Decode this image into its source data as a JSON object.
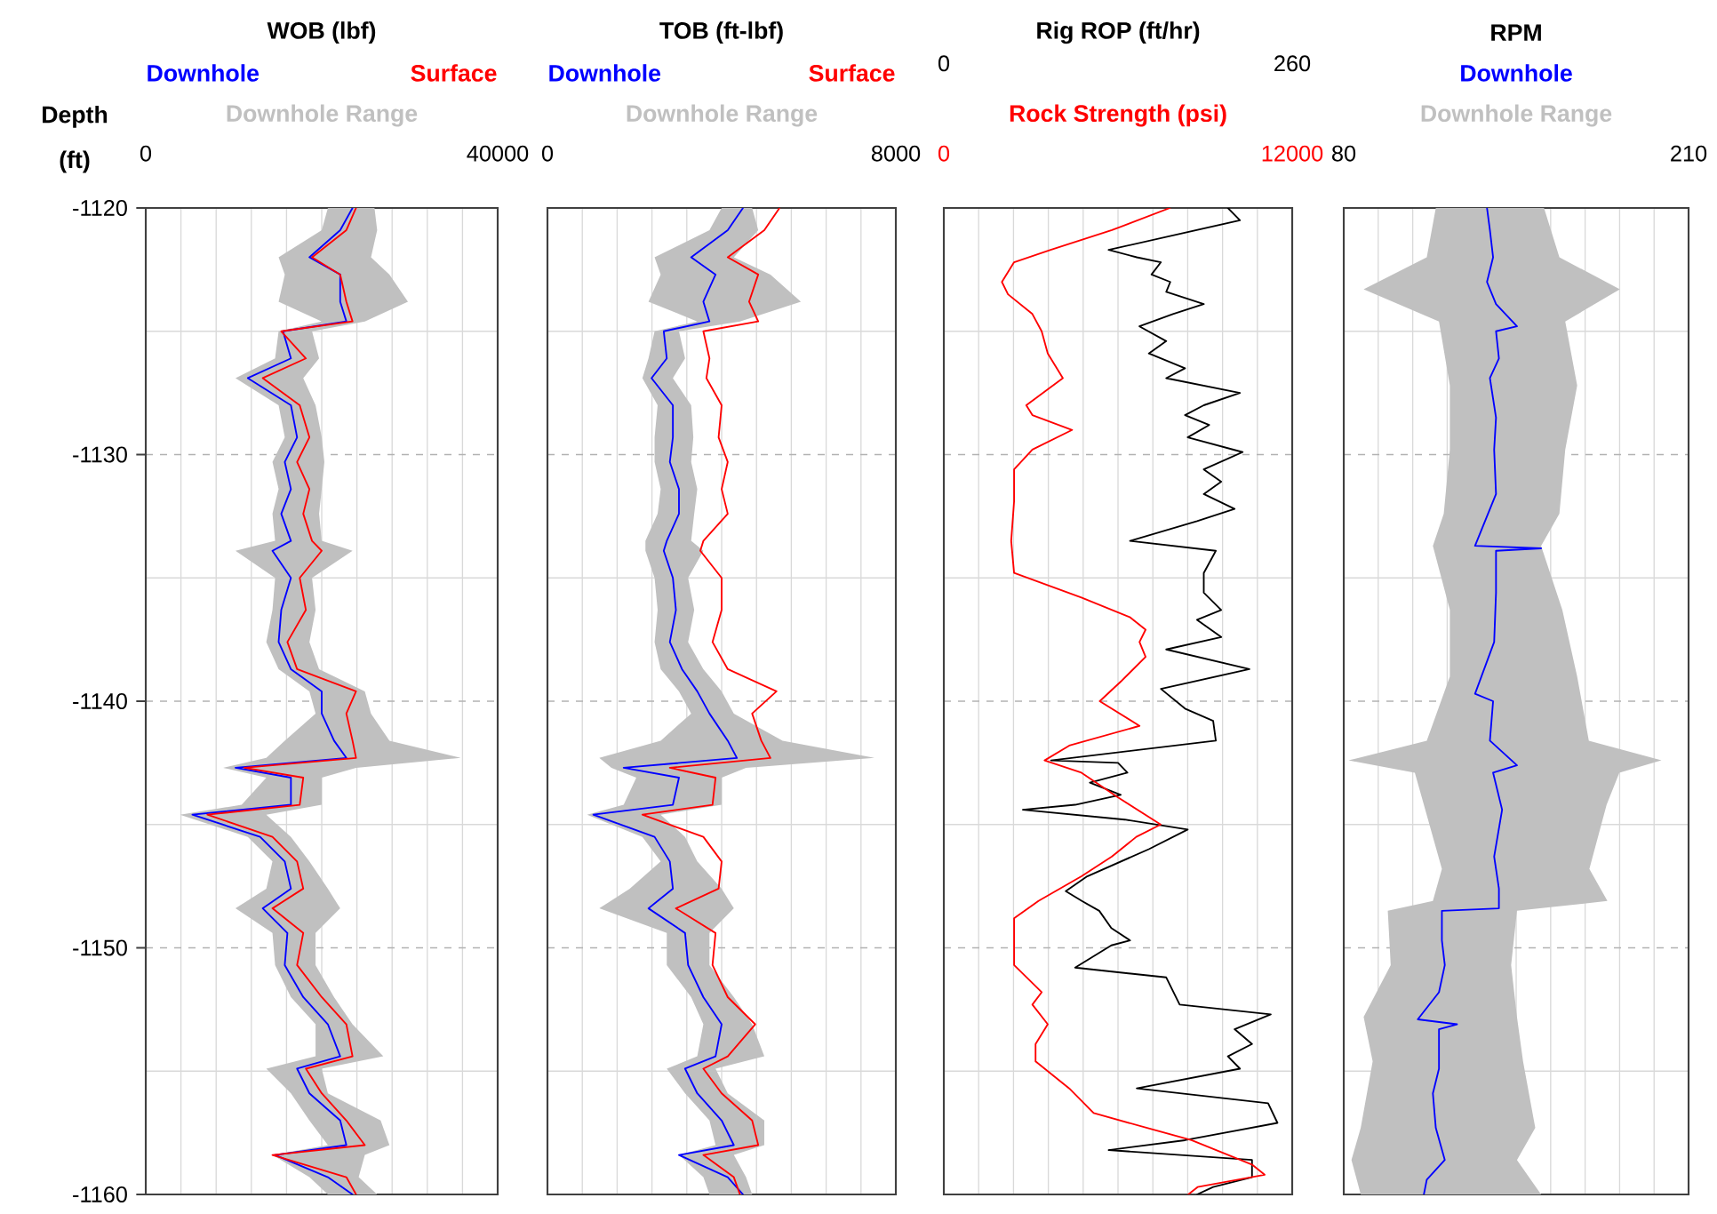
{
  "chart_data": [
    {
      "type": "line",
      "xlabel": "WOB (lbf)",
      "ylabel": "Depth (ft)",
      "legend": "top",
      "grid": true,
      "xlim": [
        0,
        40000
      ],
      "xticks": [
        0,
        {
          "value": 4000,
          "label": null
        },
        {
          "value": 8000,
          "label": null
        },
        {
          "value": 12000,
          "label": null
        },
        {
          "value": 16000,
          "label": null
        },
        {
          "value": 20000,
          "label": null
        },
        {
          "value": 24000,
          "label": null
        },
        {
          "value": 28000,
          "label": null
        },
        {
          "value": 32000,
          "label": null
        },
        {
          "value": 36000,
          "label": null
        },
        40000
      ],
      "ylim": [
        -1160,
        -1120
      ],
      "yticks": [
        -1160,
        {
          "value": -1155,
          "label": null
        },
        -1150,
        {
          "value": -1145,
          "label": null
        },
        -1140,
        {
          "value": -1135,
          "label": null
        },
        -1130,
        {
          "value": -1125,
          "label": null
        },
        -1120
      ],
      "series": [
        {
          "name": "Downhole Range",
          "type": "area",
          "color": "#c0c0c0",
          "values": [
            -1120.0,
            -1120.9,
            -1122.0,
            -1122.7,
            -1123.8,
            -1124.6,
            -1125.0,
            -1126.1,
            -1126.9,
            -1128.0,
            -1129.3,
            -1130.3,
            -1131.4,
            -1132.4,
            -1133.5,
            -1133.9,
            -1135.0,
            -1136.3,
            -1137.6,
            -1138.7,
            -1139.6,
            -1140.5,
            -1141.6,
            -1142.3,
            -1142.7,
            -1143.1,
            -1144.2,
            -1144.6,
            -1145.5,
            -1146.5,
            -1147.6,
            -1148.4,
            -1149.4,
            -1150.7,
            -1152.0,
            -1153.1,
            -1154.4,
            -1154.9,
            -1155.9,
            -1157.0,
            -1158.0,
            -1158.4,
            -1159.3,
            -1160.0,
            -1160.0,
            -1159.3,
            -1158.4,
            -1158.0,
            -1157.0,
            -1155.9,
            -1154.9,
            -1154.4,
            -1153.1,
            -1152.0,
            -1150.7,
            -1149.4,
            -1148.4,
            -1147.6,
            -1146.5,
            -1145.5,
            -1144.6,
            -1144.2,
            -1143.1,
            -1142.7,
            -1142.3,
            -1141.6,
            -1140.5,
            -1139.6,
            -1138.7,
            -1137.6,
            -1136.3,
            -1135.0,
            -1133.9,
            -1133.5,
            -1132.4,
            -1131.4,
            -1130.3,
            -1129.3,
            -1128.0,
            -1126.9,
            -1126.1,
            -1125.0,
            -1124.6,
            -1123.8,
            -1122.7,
            -1122.0,
            -1120.9,
            -1120.0
          ],
          "x": [
            20700,
            20000,
            15100,
            15800,
            15100,
            20000,
            15100,
            14700,
            10200,
            15100,
            15800,
            14400,
            15100,
            14400,
            14700,
            10200,
            14700,
            14400,
            13700,
            15100,
            18600,
            19300,
            15800,
            13700,
            8800,
            13700,
            10900,
            3900,
            11600,
            14400,
            13700,
            10200,
            14400,
            14700,
            16500,
            19300,
            19300,
            13700,
            16500,
            18600,
            20700,
            14400,
            18600,
            20700,
            26300,
            24200,
            24900,
            27700,
            26700,
            20700,
            20000,
            27000,
            23500,
            21400,
            19300,
            19300,
            22100,
            20700,
            18600,
            16500,
            13700,
            20000,
            20000,
            23900,
            35800,
            27700,
            25600,
            24900,
            19700,
            18600,
            19300,
            18900,
            23500,
            20000,
            19700,
            20000,
            20300,
            20000,
            19300,
            17900,
            19700,
            18900,
            24900,
            29800,
            27700,
            25600,
            26300,
            26000
          ]
        },
        {
          "name": "Downhole",
          "type": "line",
          "color": "#0000ff",
          "values": [
            -1120.0,
            -1120.9,
            -1122.0,
            -1122.7,
            -1123.8,
            -1124.6,
            -1125.0,
            -1126.1,
            -1126.9,
            -1128.0,
            -1129.3,
            -1130.3,
            -1131.4,
            -1132.4,
            -1133.5,
            -1133.9,
            -1135.0,
            -1136.3,
            -1137.6,
            -1138.7,
            -1139.6,
            -1140.5,
            -1141.6,
            -1142.3,
            -1142.7,
            -1143.1,
            -1144.2,
            -1144.6,
            -1145.5,
            -1146.5,
            -1147.6,
            -1148.4,
            -1149.4,
            -1150.7,
            -1152.0,
            -1153.1,
            -1154.4,
            -1154.9,
            -1155.9,
            -1157.0,
            -1158.0,
            -1158.4,
            -1159.3,
            -1160.0
          ],
          "x": [
            23500,
            22100,
            18600,
            22100,
            22100,
            22800,
            15600,
            16500,
            11600,
            16500,
            17200,
            15800,
            16500,
            15400,
            16500,
            14400,
            16500,
            15400,
            15100,
            16500,
            20000,
            20000,
            21400,
            22800,
            10200,
            16500,
            16500,
            5300,
            13000,
            15800,
            16500,
            13300,
            16100,
            15800,
            17900,
            20700,
            22100,
            17200,
            18600,
            22100,
            22800,
            14700,
            20700,
            23500
          ]
        },
        {
          "name": "Surface",
          "type": "line",
          "color": "#ff0000",
          "values": [
            -1120.0,
            -1120.9,
            -1122.0,
            -1122.7,
            -1123.8,
            -1124.6,
            -1125.0,
            -1126.1,
            -1126.9,
            -1128.0,
            -1129.3,
            -1130.3,
            -1131.4,
            -1132.4,
            -1133.5,
            -1133.9,
            -1135.0,
            -1136.3,
            -1137.6,
            -1138.7,
            -1139.6,
            -1140.5,
            -1141.6,
            -1142.3,
            -1142.7,
            -1143.1,
            -1144.2,
            -1144.6,
            -1145.5,
            -1146.5,
            -1147.6,
            -1148.4,
            -1149.4,
            -1150.7,
            -1152.0,
            -1153.1,
            -1154.4,
            -1154.9,
            -1155.9,
            -1157.0,
            -1158.0,
            -1158.4,
            -1159.3,
            -1160.0
          ],
          "x": [
            23900,
            22800,
            18900,
            22100,
            22800,
            23500,
            15400,
            18200,
            13300,
            17500,
            18600,
            17200,
            18600,
            17900,
            18900,
            20000,
            17500,
            18200,
            16100,
            17200,
            23900,
            22800,
            23500,
            23900,
            11200,
            17900,
            17500,
            7000,
            14400,
            17200,
            17900,
            14400,
            17900,
            17200,
            20000,
            22800,
            23500,
            18200,
            20000,
            22800,
            24900,
            14400,
            22800,
            23900
          ]
        }
      ]
    },
    {
      "type": "line",
      "xlabel": "TOB (ft-lbf)",
      "legend": "top",
      "grid": true,
      "tick_labels": "x",
      "xlim": [
        0,
        8000
      ],
      "xticks": [
        0,
        {
          "value": 800,
          "label": null
        },
        {
          "value": 1600,
          "label": null
        },
        {
          "value": 2400,
          "label": null
        },
        {
          "value": 3200,
          "label": null
        },
        {
          "value": 4000,
          "label": null
        },
        {
          "value": 4800,
          "label": null
        },
        {
          "value": 5600,
          "label": null
        },
        {
          "value": 6400,
          "label": null
        },
        {
          "value": 7200,
          "label": null
        },
        8000
      ],
      "ylim": [
        -1160,
        -1120
      ],
      "yticks": [
        -1160,
        {
          "value": -1155,
          "label": null
        },
        -1150,
        {
          "value": -1145,
          "label": null
        },
        -1140,
        {
          "value": -1135,
          "label": null
        },
        -1130,
        {
          "value": -1125,
          "label": null
        },
        -1120
      ],
      "series": [
        {
          "name": "Downhole Range",
          "type": "area",
          "color": "#c0c0c0",
          "values": [
            -1120.0,
            -1120.9,
            -1122.0,
            -1122.7,
            -1123.8,
            -1124.6,
            -1125.0,
            -1126.1,
            -1126.9,
            -1128.0,
            -1129.3,
            -1130.3,
            -1131.4,
            -1132.4,
            -1133.5,
            -1133.9,
            -1135.0,
            -1136.3,
            -1137.6,
            -1138.7,
            -1139.6,
            -1140.5,
            -1141.6,
            -1142.3,
            -1142.7,
            -1143.1,
            -1144.2,
            -1144.6,
            -1145.5,
            -1146.5,
            -1147.6,
            -1148.4,
            -1149.4,
            -1150.7,
            -1152.0,
            -1153.1,
            -1154.4,
            -1154.9,
            -1155.9,
            -1157.0,
            -1158.0,
            -1158.4,
            -1159.3,
            -1160.0,
            -1160.0,
            -1159.3,
            -1158.4,
            -1158.0,
            -1157.0,
            -1155.9,
            -1154.9,
            -1154.4,
            -1153.1,
            -1152.0,
            -1150.7,
            -1149.4,
            -1148.4,
            -1147.6,
            -1146.5,
            -1145.5,
            -1144.6,
            -1144.2,
            -1143.1,
            -1142.7,
            -1142.3,
            -1141.6,
            -1140.5,
            -1139.6,
            -1138.7,
            -1137.6,
            -1136.3,
            -1135.0,
            -1133.9,
            -1133.5,
            -1132.4,
            -1131.4,
            -1130.3,
            -1129.3,
            -1128.0,
            -1126.9,
            -1126.1,
            -1125.0,
            -1124.6,
            -1123.8,
            -1122.7,
            -1122.0,
            -1120.9,
            -1120.0
          ],
          "x": [
            4000,
            3720,
            2460,
            2600,
            2320,
            3440,
            2460,
            2320,
            2180,
            2530,
            2460,
            2460,
            2600,
            2530,
            2250,
            2250,
            2460,
            2530,
            2460,
            2600,
            3020,
            3300,
            2600,
            1190,
            1470,
            2040,
            1750,
            910,
            2180,
            2600,
            1890,
            1190,
            2740,
            2740,
            3300,
            3580,
            3440,
            2740,
            3160,
            3720,
            3860,
            3020,
            3580,
            3720,
            4700,
            4560,
            4280,
            4980,
            4980,
            4140,
            3860,
            4980,
            4700,
            4280,
            3720,
            3720,
            4280,
            4000,
            3440,
            3160,
            2600,
            4000,
            4000,
            4560,
            7510,
            5400,
            4280,
            4000,
            3580,
            3230,
            3370,
            3230,
            3580,
            3300,
            3370,
            3440,
            3300,
            3350,
            3300,
            2880,
            3160,
            3020,
            4420,
            5820,
            5120,
            4280,
            4840,
            4700
          ]
        },
        {
          "name": "Downhole",
          "type": "line",
          "color": "#0000ff",
          "values": [
            -1120.0,
            -1120.9,
            -1122.0,
            -1122.7,
            -1123.8,
            -1124.6,
            -1125.0,
            -1126.1,
            -1126.9,
            -1128.0,
            -1129.3,
            -1130.3,
            -1131.4,
            -1132.4,
            -1133.5,
            -1133.9,
            -1135.0,
            -1136.3,
            -1137.6,
            -1138.7,
            -1139.6,
            -1140.5,
            -1141.6,
            -1142.3,
            -1142.7,
            -1143.1,
            -1144.2,
            -1144.6,
            -1145.5,
            -1146.5,
            -1147.6,
            -1148.4,
            -1149.4,
            -1150.7,
            -1152.0,
            -1153.1,
            -1154.4,
            -1154.9,
            -1155.9,
            -1157.0,
            -1158.0,
            -1158.4,
            -1159.3,
            -1160.0
          ],
          "x": [
            4490,
            4140,
            3300,
            3860,
            3580,
            3720,
            2670,
            2740,
            2390,
            2880,
            2880,
            2810,
            3020,
            3020,
            2740,
            2670,
            2880,
            2950,
            2810,
            3090,
            3440,
            3720,
            4140,
            4350,
            1750,
            3020,
            2880,
            1050,
            2460,
            2810,
            2880,
            2320,
            3160,
            3230,
            3580,
            4000,
            3860,
            3160,
            3440,
            4000,
            4280,
            3020,
            4140,
            4490
          ]
        },
        {
          "name": "Surface",
          "type": "line",
          "color": "#ff0000",
          "values": [
            -1120.0,
            -1120.9,
            -1122.0,
            -1122.7,
            -1123.8,
            -1124.6,
            -1125.0,
            -1126.1,
            -1126.9,
            -1128.0,
            -1129.3,
            -1130.3,
            -1131.4,
            -1132.4,
            -1133.5,
            -1133.9,
            -1135.0,
            -1136.3,
            -1137.6,
            -1138.7,
            -1139.6,
            -1140.5,
            -1141.6,
            -1142.3,
            -1142.7,
            -1143.1,
            -1144.2,
            -1144.6,
            -1145.5,
            -1146.5,
            -1147.6,
            -1148.4,
            -1149.4,
            -1150.7,
            -1152.0,
            -1153.1,
            -1154.4,
            -1154.9,
            -1155.9,
            -1157.0,
            -1158.0,
            -1158.4,
            -1159.3,
            -1160.0
          ],
          "x": [
            5330,
            4980,
            4140,
            4840,
            4630,
            4840,
            3580,
            3720,
            3650,
            4000,
            3930,
            4140,
            4000,
            4140,
            3580,
            3510,
            4000,
            4000,
            3790,
            4140,
            5260,
            4700,
            4910,
            5120,
            2810,
            3860,
            3790,
            2180,
            3580,
            4000,
            3930,
            2950,
            3860,
            3790,
            4140,
            4770,
            4140,
            3580,
            4000,
            4700,
            4840,
            3580,
            4280,
            4420
          ]
        }
      ]
    },
    {
      "type": "line",
      "xlabel": "Rig ROP (ft/hr)",
      "x2label": "Rock Strength (psi)",
      "grid": true,
      "tick_labels": "x",
      "xlim": [
        0,
        260
      ],
      "xticks": [
        0,
        {
          "value": 26,
          "label": null
        },
        {
          "value": 52,
          "label": null
        },
        {
          "value": 78,
          "label": null
        },
        {
          "value": 104,
          "label": null
        },
        {
          "value": 130,
          "label": null
        },
        {
          "value": 156,
          "label": null
        },
        {
          "value": 182,
          "label": null
        },
        {
          "value": 208,
          "label": null
        },
        {
          "value": 234,
          "label": null
        },
        260
      ],
      "x2lim": [
        0,
        12000
      ],
      "x2ticks": [
        0,
        12000
      ],
      "ylim": [
        -1160,
        -1120
      ],
      "yticks": [
        -1160,
        {
          "value": -1155,
          "label": null
        },
        -1150,
        {
          "value": -1145,
          "label": null
        },
        -1140,
        {
          "value": -1135,
          "label": null
        },
        -1130,
        {
          "value": -1125,
          "label": null
        },
        -1120
      ],
      "series": [
        {
          "type": "line",
          "color": "#ff0000",
          "axis": "x2",
          "values": [
            -1120.0,
            -1120.9,
            -1121.7,
            -1122.2,
            -1123.0,
            -1123.5,
            -1124.3,
            -1125.0,
            -1125.9,
            -1126.9,
            -1128.0,
            -1128.4,
            -1129.0,
            -1129.8,
            -1130.6,
            -1131.9,
            -1133.5,
            -1134.8,
            -1135.8,
            -1136.6,
            -1137.1,
            -1137.6,
            -1138.2,
            -1139.2,
            -1140.0,
            -1141.0,
            -1141.8,
            -1142.4,
            -1142.9,
            -1143.9,
            -1145.0,
            -1145.5,
            -1146.3,
            -1147.1,
            -1148.1,
            -1148.8,
            -1150.7,
            -1151.8,
            -1152.3,
            -1153.1,
            -1153.9,
            -1154.6,
            -1155.7,
            -1156.7,
            -1157.8,
            -1158.8,
            -1159.2,
            -1159.7,
            -1160.0
          ],
          "x": [
            7790,
            5790,
            3680,
            2420,
            2000,
            2210,
            3050,
            3370,
            3580,
            4100,
            2840,
            3050,
            4420,
            3050,
            2420,
            2420,
            2320,
            2420,
            4740,
            6420,
            6950,
            6740,
            6950,
            6100,
            5370,
            6740,
            4320,
            3470,
            4740,
            6000,
            7470,
            6630,
            5790,
            4740,
            3260,
            2420,
            2420,
            3370,
            3050,
            3580,
            3160,
            3160,
            4320,
            5160,
            8530,
            10630,
            11050,
            8740,
            8420
          ]
        },
        {
          "type": "line",
          "color": "#000000",
          "values": [
            -1120.0,
            -1120.5,
            -1121.7,
            -1122.0,
            -1122.2,
            -1122.7,
            -1123.0,
            -1123.4,
            -1123.9,
            -1124.3,
            -1124.8,
            -1125.4,
            -1125.9,
            -1126.5,
            -1126.9,
            -1127.5,
            -1128.0,
            -1128.4,
            -1128.8,
            -1129.3,
            -1129.9,
            -1130.6,
            -1131.1,
            -1131.6,
            -1132.2,
            -1132.7,
            -1133.5,
            -1133.9,
            -1134.8,
            -1135.6,
            -1136.3,
            -1136.7,
            -1137.4,
            -1137.9,
            -1138.7,
            -1139.5,
            -1140.3,
            -1140.8,
            -1141.6,
            -1142.4,
            -1142.5,
            -1142.9,
            -1143.3,
            -1143.8,
            -1144.2,
            -1144.4,
            -1144.8,
            -1145.2,
            -1146.0,
            -1147.1,
            -1147.7,
            -1148.1,
            -1148.5,
            -1149.2,
            -1149.7,
            -1149.9,
            -1150.8,
            -1151.2,
            -1152.3,
            -1152.7,
            -1153.3,
            -1153.9,
            -1154.4,
            -1154.9,
            -1155.7,
            -1156.3,
            -1157.1,
            -1157.8,
            -1158.2,
            -1158.6,
            -1159.3,
            -1159.7,
            -1160.0
          ],
          "x": [
            212,
            221,
            123,
            144,
            162,
            155,
            169,
            166,
            194,
            171,
            146,
            166,
            153,
            180,
            166,
            221,
            194,
            180,
            198,
            182,
            223,
            194,
            207,
            194,
            217,
            189,
            139,
            203,
            194,
            194,
            207,
            189,
            207,
            166,
            228,
            162,
            180,
            201,
            203,
            80,
            130,
            137,
            109,
            132,
            98,
            59,
            135,
            182,
            153,
            107,
            91,
            103,
            116,
            125,
            139,
            125,
            98,
            166,
            176,
            244,
            217,
            230,
            212,
            221,
            144,
            242,
            249,
            180,
            123,
            230,
            230,
            201,
            189
          ]
        }
      ]
    },
    {
      "type": "line",
      "xlabel": "RPM",
      "legend": "top",
      "grid": true,
      "tick_labels": "x",
      "xlim": [
        80,
        210
      ],
      "xticks": [
        80,
        {
          "value": 93,
          "label": null
        },
        {
          "value": 106,
          "label": null
        },
        {
          "value": 119,
          "label": null
        },
        {
          "value": 132,
          "label": null
        },
        {
          "value": 145,
          "label": null
        },
        {
          "value": 158,
          "label": null
        },
        {
          "value": 171,
          "label": null
        },
        {
          "value": 184,
          "label": null
        },
        {
          "value": 197,
          "label": null
        },
        210
      ],
      "ylim": [
        -1160,
        -1120
      ],
      "yticks": [
        -1160,
        {
          "value": -1155,
          "label": null
        },
        -1150,
        {
          "value": -1145,
          "label": null
        },
        -1140,
        {
          "value": -1135,
          "label": null
        },
        -1130,
        {
          "value": -1125,
          "label": null
        },
        -1120
      ],
      "series": [
        {
          "name": "Downhole Range",
          "type": "area",
          "color": "#c0c0c0",
          "values": [
            -1120.0,
            -1122.0,
            -1123.3,
            -1124.6,
            -1127.2,
            -1129.8,
            -1132.4,
            -1133.7,
            -1136.3,
            -1139.0,
            -1141.6,
            -1142.4,
            -1142.9,
            -1144.2,
            -1146.8,
            -1148.1,
            -1148.5,
            -1150.7,
            -1152.8,
            -1154.6,
            -1157.3,
            -1158.6,
            -1160.0,
            -1160.0,
            -1158.6,
            -1157.3,
            -1154.6,
            -1152.8,
            -1150.7,
            -1148.5,
            -1148.1,
            -1146.8,
            -1144.2,
            -1142.9,
            -1142.4,
            -1141.6,
            -1139.0,
            -1136.3,
            -1133.7,
            -1132.4,
            -1129.8,
            -1127.2,
            -1124.6,
            -1123.3,
            -1122.0,
            -1120.0
          ],
          "x": [
            114.7,
            111.3,
            87.5,
            115.9,
            120.0,
            120.0,
            117.7,
            113.6,
            120.0,
            120.0,
            111.3,
            81.8,
            106.8,
            110.2,
            117.0,
            113.6,
            96.6,
            97.7,
            87.5,
            90.9,
            86.4,
            82.9,
            86.4,
            154.4,
            145.3,
            152.2,
            147.6,
            145.3,
            143.1,
            145.3,
            179.4,
            172.6,
            179.1,
            183.9,
            199.8,
            172.4,
            168.0,
            162.4,
            154.4,
            161.3,
            163.5,
            168.0,
            163.5,
            184.1,
            161.3,
            155.5
          ]
        },
        {
          "name": "Downhole",
          "type": "line",
          "color": "#0000ff",
          "values": [
            -1120.0,
            -1120.9,
            -1122.0,
            -1123.0,
            -1123.9,
            -1124.8,
            -1125.0,
            -1126.1,
            -1126.9,
            -1128.5,
            -1129.8,
            -1131.6,
            -1133.7,
            -1133.8,
            -1133.9,
            -1135.6,
            -1137.6,
            -1139.7,
            -1140.0,
            -1141.6,
            -1142.6,
            -1142.9,
            -1144.4,
            -1146.3,
            -1147.6,
            -1148.4,
            -1148.5,
            -1149.7,
            -1150.7,
            -1151.8,
            -1152.9,
            -1153.1,
            -1153.3,
            -1154.9,
            -1155.9,
            -1157.3,
            -1158.6,
            -1159.4,
            -1160.0
          ],
          "x": [
            134.0,
            135.1,
            136.3,
            134.0,
            137.4,
            145.3,
            137.4,
            138.5,
            135.1,
            137.4,
            136.7,
            137.4,
            129.5,
            154.4,
            137.4,
            137.4,
            136.7,
            129.5,
            136.3,
            135.1,
            145.3,
            136.3,
            139.7,
            136.7,
            138.5,
            138.5,
            117.0,
            117.0,
            118.1,
            115.9,
            107.9,
            122.7,
            115.9,
            115.9,
            113.6,
            114.7,
            118.1,
            111.3,
            110.2
          ]
        }
      ]
    }
  ]
}
